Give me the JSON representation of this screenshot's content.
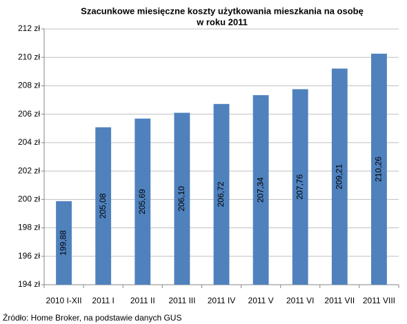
{
  "chart_data": {
    "type": "bar",
    "title": [
      "Szacunkowe miesięczne koszty użytkowania mieszkania na osobę",
      "w roku 2011"
    ],
    "categories": [
      "2010 I-XII",
      "2011 I",
      "2011 II",
      "2011 III",
      "2011 IV",
      "2011 V",
      "2011 VI",
      "2011 VII",
      "2011 VIII"
    ],
    "values": [
      199.88,
      205.08,
      205.69,
      206.1,
      206.72,
      207.34,
      207.76,
      209.21,
      210.26
    ],
    "value_labels": [
      "199,88",
      "205,08",
      "205,69",
      "206,10",
      "206,72",
      "207,34",
      "207,76",
      "209,21",
      "210,26"
    ],
    "color": "#4f81bd",
    "ylim": [
      194,
      212
    ],
    "yticks": [
      {
        "value": 194,
        "label": "194 zł"
      },
      {
        "value": 196,
        "label": "196 zł"
      },
      {
        "value": 198,
        "label": "198 zł"
      },
      {
        "value": 200,
        "label": "200 zł"
      },
      {
        "value": 202,
        "label": "202 zł"
      },
      {
        "value": 204,
        "label": "204 zł"
      },
      {
        "value": 206,
        "label": "206 zł"
      },
      {
        "value": 208,
        "label": "208 zł"
      },
      {
        "value": 210,
        "label": "210 zł"
      },
      {
        "value": 212,
        "label": "212 zł"
      }
    ],
    "grid": true,
    "source": "Źródło: Home Broker, na podstawie danych GUS"
  }
}
